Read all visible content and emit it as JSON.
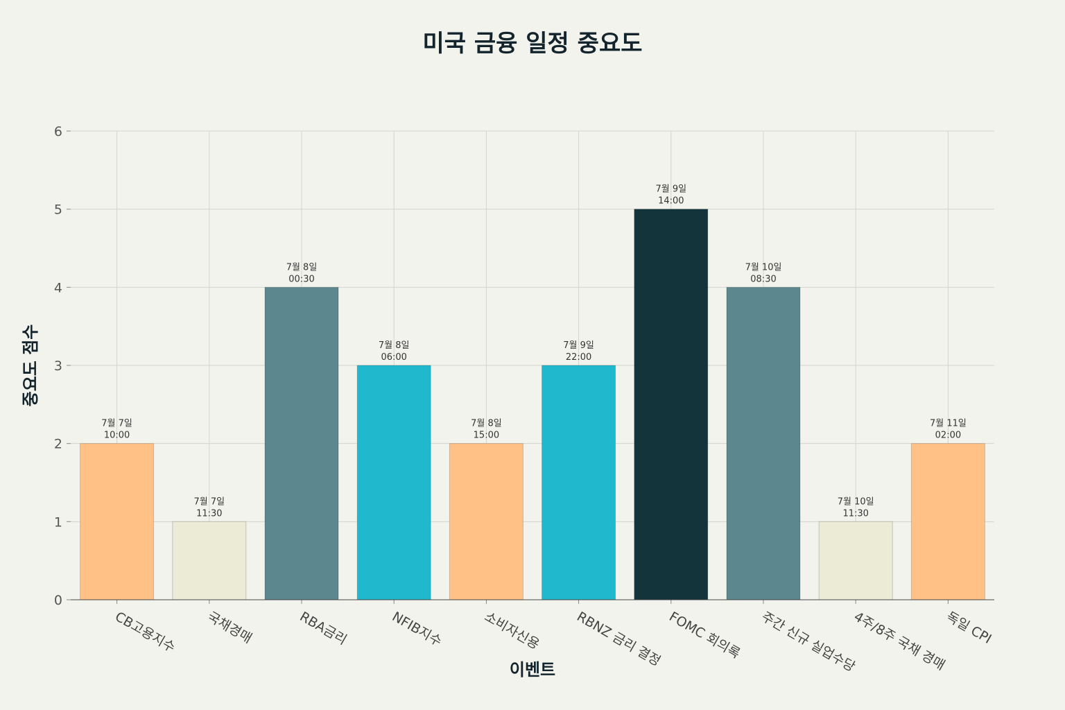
{
  "chart_data": {
    "type": "bar",
    "title": "미국 금융 일정 중요도",
    "xlabel": "이벤트",
    "ylabel": "중요도 점수",
    "ylim": [
      0,
      6
    ],
    "yticks": [
      "0",
      "1",
      "2",
      "3",
      "4",
      "5",
      "6"
    ],
    "grid": true,
    "categories": [
      "CB고용지수",
      "국채경매",
      "RBA금리",
      "NFIB지수",
      "소비자신용",
      "RBNZ 금리 결정",
      "FOMC 회의록",
      "주간 신규 실업수당",
      "4주/8주 국채 경매",
      "독일 CPI"
    ],
    "values": [
      2,
      1,
      4,
      3,
      2,
      3,
      5,
      4,
      1,
      2
    ],
    "data_labels": [
      [
        "7월 7일",
        "10:00"
      ],
      [
        "7월 7일",
        "11:30"
      ],
      [
        "7월 8일",
        "00:30"
      ],
      [
        "7월 8일",
        "06:00"
      ],
      [
        "7월 8일",
        "15:00"
      ],
      [
        "7월 9일",
        "22:00"
      ],
      [
        "7월 9일",
        "14:00"
      ],
      [
        "7월 10일",
        "08:30"
      ],
      [
        "7월 10일",
        "11:30"
      ],
      [
        "7월 11일",
        "02:00"
      ]
    ],
    "colors": [
      "#ffc185",
      "#ecebd5",
      "#5d878f",
      "#1fb8cd",
      "#ffc185",
      "#1fb8cd",
      "#13343b",
      "#5d878f",
      "#ecebd5",
      "#ffc185"
    ],
    "color_scale": {
      "1": "#ecebd5",
      "2": "#ffc185",
      "3": "#1fb8cd",
      "4": "#5d878f",
      "5": "#13343b"
    }
  }
}
